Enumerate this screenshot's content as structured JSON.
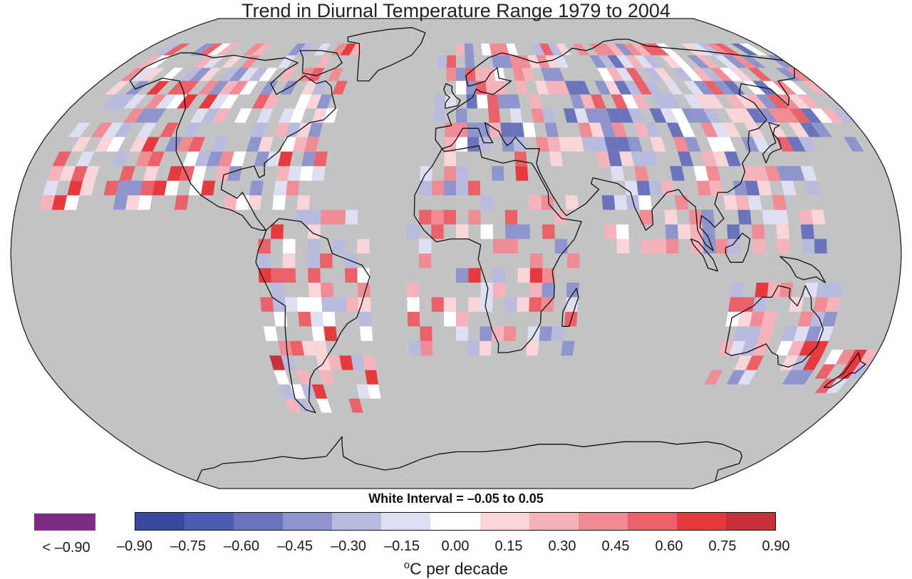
{
  "map": {
    "title": "Trend in Diurnal Temperature Range 1979 to 2004",
    "projection": "Robinson",
    "ocean_color": "#c2c3c5",
    "land_outline_color": "#111111",
    "interval_note": "White Interval = –0.05 to 0.05",
    "colorbar": {
      "unit_prefix": "o",
      "unit_suffix": "C per decade",
      "below_label": "< –0.90",
      "below_color": "#7b2d82",
      "tick_labels": [
        "–0.90",
        "–0.75",
        "–0.60",
        "–0.45",
        "–0.30",
        "–0.15",
        "0.00",
        "0.15",
        "0.30",
        "0.45",
        "0.60",
        "0.75",
        "0.90"
      ],
      "colors": [
        "#3a4a9f",
        "#4d5caf",
        "#6a74bb",
        "#8e95cc",
        "#b8bade",
        "#dedff0",
        "#ffffff",
        "#f9d5d9",
        "#f5b4bb",
        "#f08d94",
        "#ea6169",
        "#e63a3f",
        "#c6313a"
      ]
    }
  }
}
